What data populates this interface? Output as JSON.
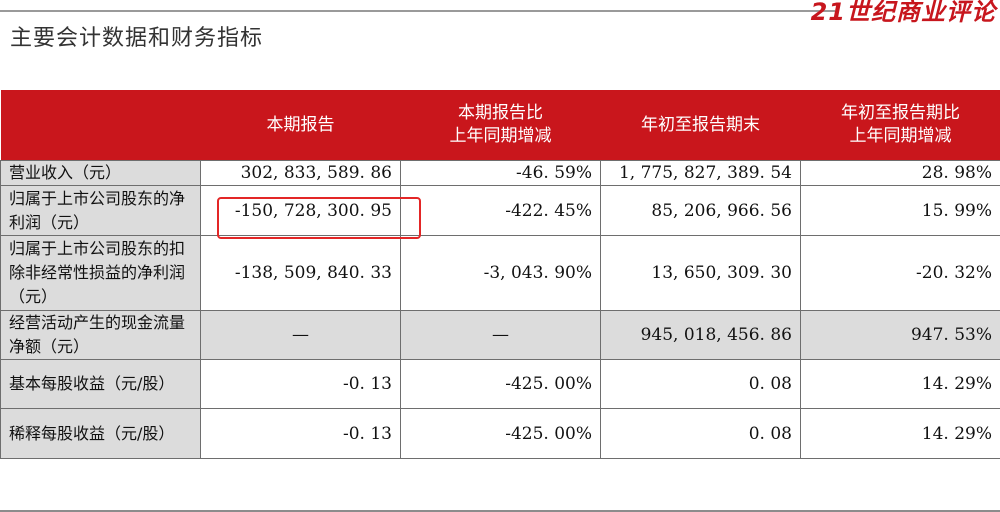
{
  "brand": "21世纪商业评论",
  "title": "主要会计数据和财务指标",
  "table": {
    "headers": [
      "",
      "本期报告",
      "本期报告比\n上年同期增减",
      "年初至报告期末",
      "年初至报告期比\n上年同期增减"
    ],
    "rows": [
      {
        "label": "营业收入（元）",
        "values": [
          "302, 833, 589. 86",
          "-46. 59%",
          "1, 775, 827, 389. 54",
          "28. 98%"
        ]
      },
      {
        "label": "归属于上市公司股东的净利润（元）",
        "values": [
          "-150, 728, 300. 95",
          "-422. 45%",
          "85, 206, 966. 56",
          "15. 99%"
        ]
      },
      {
        "label": "归属于上市公司股东的扣除非经常性损益的净利润（元）",
        "values": [
          "-138, 509, 840. 33",
          "-3, 043. 90%",
          "13, 650, 309. 30",
          "-20. 32%"
        ]
      },
      {
        "label": "经营活动产生的现金流量净额（元）",
        "values": [
          "—",
          "—",
          "945, 018, 456. 86",
          "947. 53%"
        ]
      },
      {
        "label": "基本每股收益（元/股）",
        "values": [
          "-0. 13",
          "-425. 00%",
          "0. 08",
          "14. 29%"
        ]
      },
      {
        "label": "稀释每股收益（元/股）",
        "values": [
          "-0. 13",
          "-425. 00%",
          "0. 08",
          "14. 29%"
        ]
      }
    ]
  }
}
